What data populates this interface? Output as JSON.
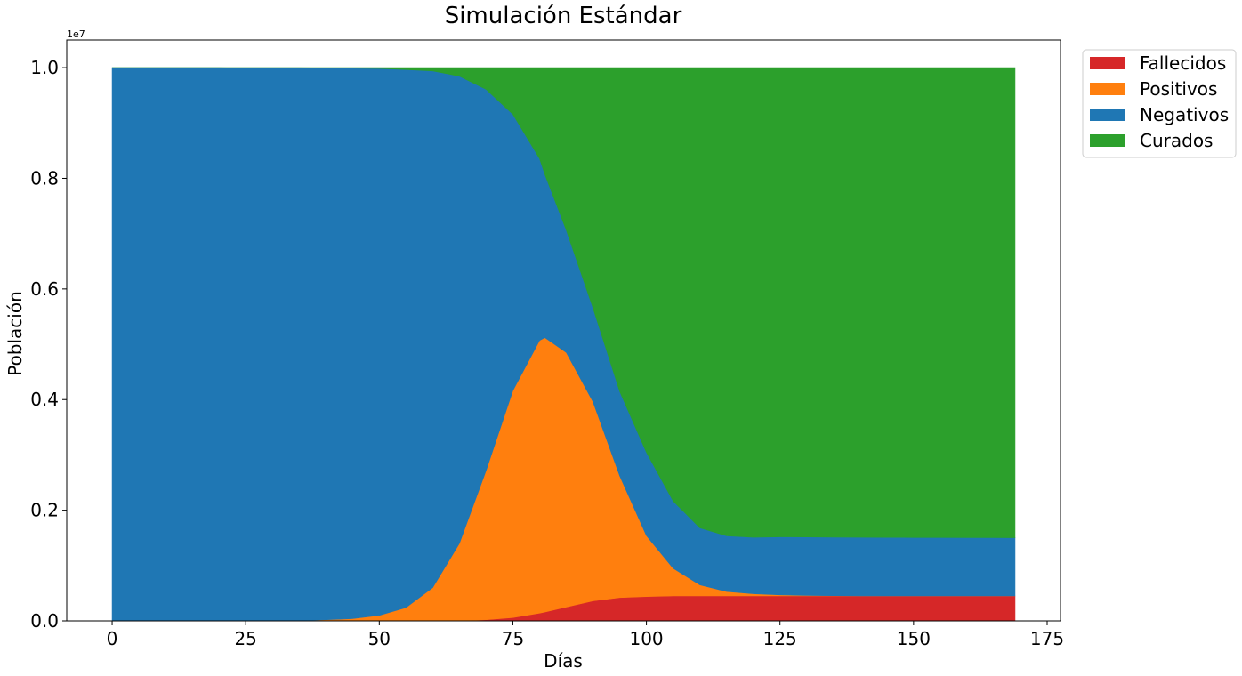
{
  "chart_data": {
    "type": "area",
    "stacked": true,
    "title": "Simulación Estándar",
    "xlabel": "Días",
    "ylabel": "Población",
    "y_offset_label": "1e7",
    "xlim": [
      -8.5,
      177.5
    ],
    "ylim": [
      0,
      1.05
    ],
    "x_ticks": [
      0,
      25,
      50,
      75,
      100,
      125,
      150,
      175
    ],
    "x_tick_labels": [
      "0",
      "25",
      "50",
      "75",
      "100",
      "125",
      "150",
      "175"
    ],
    "y_ticks": [
      0,
      0.2,
      0.4,
      0.6,
      0.8,
      1.0
    ],
    "y_tick_labels": [
      "0.0",
      "0.2",
      "0.4",
      "0.6",
      "0.8",
      "1.0"
    ],
    "grid": false,
    "legend_position": "outside-top-right",
    "legend_order": [
      "Fallecidos",
      "Positivos",
      "Negativos",
      "Curados"
    ],
    "x": [
      0,
      5,
      10,
      15,
      20,
      25,
      30,
      35,
      40,
      45,
      50,
      55,
      60,
      65,
      70,
      75,
      80,
      81,
      85,
      90,
      95,
      100,
      105,
      110,
      115,
      120,
      125,
      130,
      135,
      140,
      145,
      150,
      155,
      160,
      165,
      169
    ],
    "series": [
      {
        "name": "Fallecidos",
        "color": "#d62728",
        "values": [
          0,
          0,
          0,
          0,
          0,
          0,
          0,
          0,
          0,
          0,
          0,
          0,
          0,
          0,
          0.002,
          0.006,
          0.014,
          0.016,
          0.025,
          0.036,
          0.042,
          0.044,
          0.045,
          0.045,
          0.045,
          0.045,
          0.045,
          0.045,
          0.045,
          0.045,
          0.045,
          0.045,
          0.045,
          0.045,
          0.045,
          0.045
        ]
      },
      {
        "name": "Positivos",
        "color": "#ff7f0e",
        "values": [
          0,
          0,
          0,
          0,
          0,
          0,
          0.0002,
          0.0005,
          0.002,
          0.004,
          0.01,
          0.024,
          0.06,
          0.14,
          0.27,
          0.41,
          0.493,
          0.496,
          0.46,
          0.36,
          0.22,
          0.11,
          0.05,
          0.02,
          0.008,
          0.004,
          0.002,
          0.001,
          0.0005,
          0.0002,
          0.0001,
          0,
          0,
          0,
          0,
          0
        ]
      },
      {
        "name": "Negativos",
        "color": "#1f77b4",
        "values": [
          1.0,
          1.0,
          1.0,
          1.0,
          1.0,
          0.9999,
          0.9997,
          0.9993,
          0.9975,
          0.995,
          0.9885,
          0.9725,
          0.934,
          0.8446,
          0.6887,
          0.4997,
          0.3285,
          0.2947,
          0.2213,
          0.1696,
          0.1526,
          0.1505,
          0.1215,
          0.1031,
          0.1007,
          0.1021,
          0.1049,
          0.1057,
          0.1058,
          0.1059,
          0.1058,
          0.1057,
          0.1056,
          0.1055,
          0.1054,
          0.1053
        ]
      },
      {
        "name": "Curados",
        "color": "#2ca02c",
        "values": [
          0,
          0,
          0,
          0,
          0,
          0.0001,
          0.0001,
          0.0002,
          0.0005,
          0.001,
          0.0015,
          0.0035,
          0.006,
          0.0154,
          0.0393,
          0.0843,
          0.1645,
          0.1933,
          0.2937,
          0.4344,
          0.5854,
          0.6955,
          0.7835,
          0.8319,
          0.8463,
          0.8489,
          0.8481,
          0.8483,
          0.8487,
          0.8489,
          0.8491,
          0.8493,
          0.8494,
          0.8495,
          0.8496,
          0.8497
        ]
      }
    ]
  }
}
